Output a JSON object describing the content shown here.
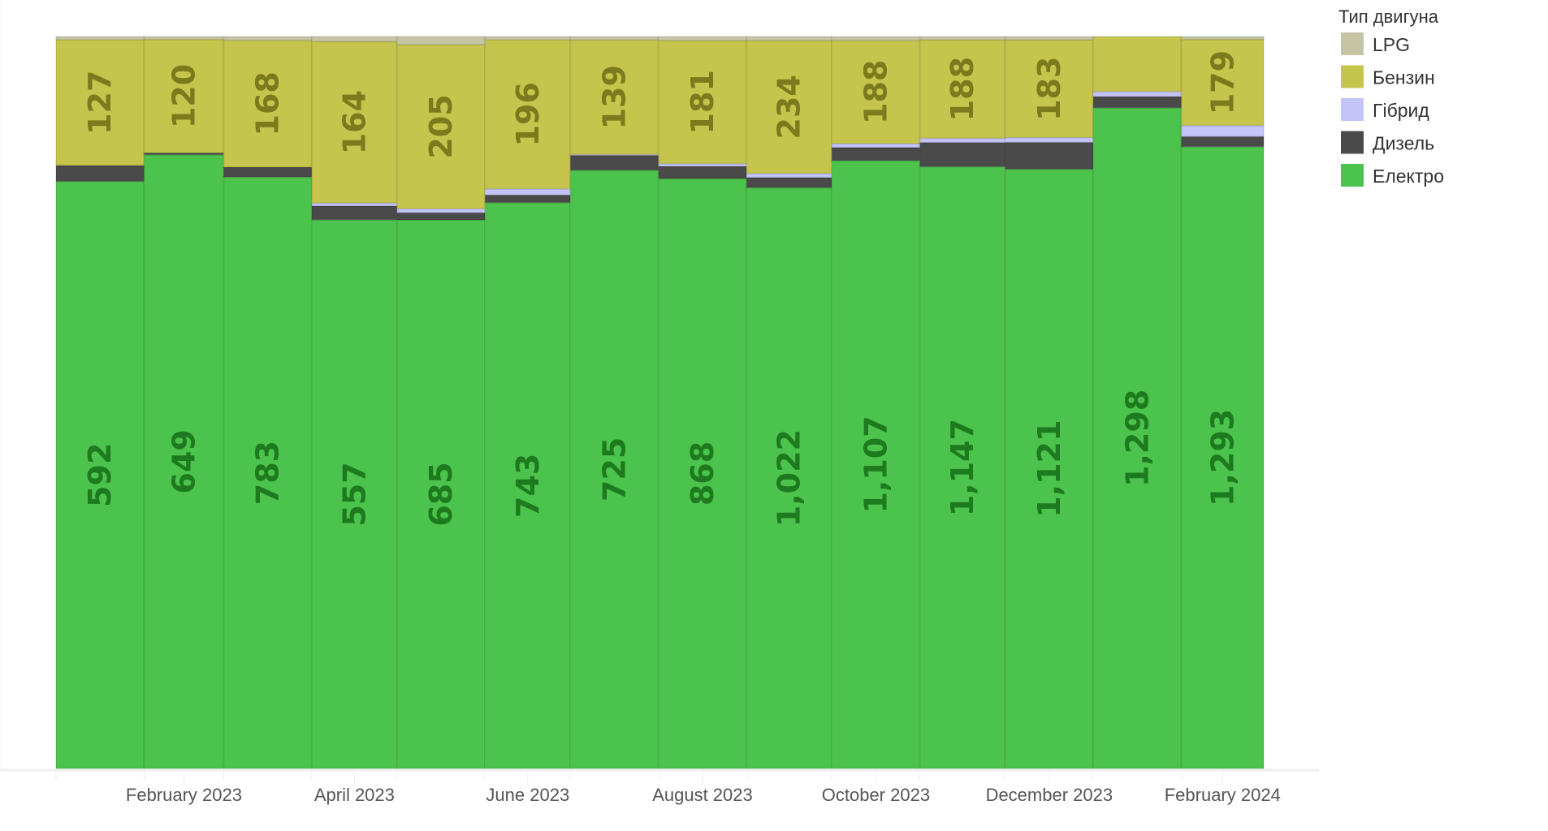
{
  "chart_data": {
    "type": "bar",
    "stacking": "percent",
    "categories": [
      "2023-01",
      "2023-02",
      "2023-03",
      "2023-04",
      "2023-05",
      "2023-06",
      "2023-07",
      "2023-08",
      "2023-09",
      "2023-10",
      "2023-11",
      "2023-12",
      "2024-01",
      "2024-02"
    ],
    "x_tick_labels": [
      "February 2023",
      "April 2023",
      "June 2023",
      "August 2023",
      "October 2023",
      "December 2023",
      "February 2024"
    ],
    "x_tick_categories": [
      "2023-02",
      "2023-04",
      "2023-06",
      "2023-08",
      "2023-10",
      "2023-12",
      "2024-02"
    ],
    "series": [
      {
        "name": "Електро",
        "color": "#4cc34c",
        "label_color": "#1e7a1e",
        "values": [
          592,
          649,
          783,
          557,
          685,
          743,
          725,
          868,
          1022,
          1107,
          1147,
          1121,
          1298,
          1293
        ],
        "labeled": [
          true,
          true,
          true,
          true,
          true,
          true,
          true,
          true,
          true,
          true,
          true,
          true,
          true,
          true
        ]
      },
      {
        "name": "Дизель",
        "color": "#4a4a4a",
        "values": [
          16,
          2,
          13,
          14,
          9,
          10,
          18,
          18,
          18,
          24,
          46,
          50,
          22,
          21
        ]
      },
      {
        "name": "Гібрид",
        "color": "#c4c4fa",
        "values": [
          0,
          0,
          0,
          3,
          5,
          8,
          1,
          4,
          7,
          7,
          8,
          9,
          10,
          23
        ]
      },
      {
        "name": "Бензин",
        "color": "#c5c44c",
        "label_color": "#7b7a1c",
        "values": [
          127,
          120,
          168,
          164,
          205,
          196,
          139,
          181,
          234,
          188,
          188,
          183,
          108,
          179
        ],
        "labeled": [
          true,
          true,
          true,
          true,
          true,
          true,
          true,
          true,
          true,
          true,
          true,
          true,
          false,
          true
        ]
      },
      {
        "name": "LPG",
        "color": "#c5c5a6",
        "values": [
          3,
          3,
          5,
          5,
          10,
          4,
          4,
          6,
          7,
          7,
          6,
          6,
          0,
          6
        ]
      }
    ],
    "legend": {
      "title": "Тип двигуна",
      "order": [
        "LPG",
        "Бензин",
        "Гібрид",
        "Дизель",
        "Електро"
      ],
      "placement": "top-right"
    },
    "title": "",
    "xlabel": "",
    "ylabel": "",
    "ylim": [
      0,
      100
    ],
    "grid": false
  }
}
